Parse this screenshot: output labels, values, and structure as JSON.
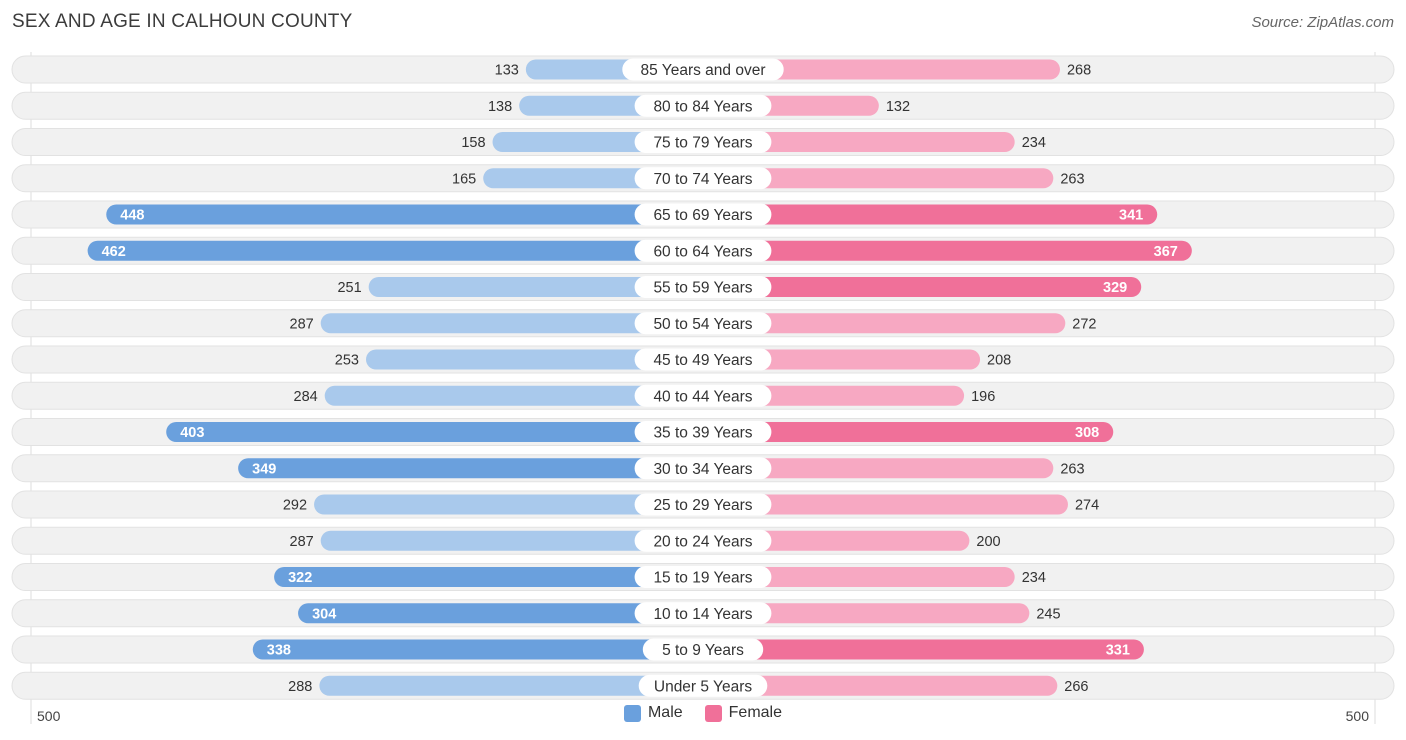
{
  "title": "SEX AND AGE IN CALHOUN COUNTY",
  "source": "Source: ZipAtlas.com",
  "chart_data": {
    "type": "bar",
    "orientation": "horizontal-diverging",
    "categories": [
      "85 Years and over",
      "80 to 84 Years",
      "75 to 79 Years",
      "70 to 74 Years",
      "65 to 69 Years",
      "60 to 64 Years",
      "55 to 59 Years",
      "50 to 54 Years",
      "45 to 49 Years",
      "40 to 44 Years",
      "35 to 39 Years",
      "30 to 34 Years",
      "25 to 29 Years",
      "20 to 24 Years",
      "15 to 19 Years",
      "10 to 14 Years",
      "5 to 9 Years",
      "Under 5 Years"
    ],
    "series": [
      {
        "name": "Male",
        "values": [
          133,
          138,
          158,
          165,
          448,
          462,
          251,
          287,
          253,
          284,
          403,
          349,
          292,
          287,
          322,
          304,
          338,
          288
        ]
      },
      {
        "name": "Female",
        "values": [
          268,
          132,
          234,
          263,
          341,
          367,
          329,
          272,
          208,
          196,
          308,
          263,
          274,
          200,
          234,
          245,
          331,
          266
        ]
      }
    ],
    "axis": {
      "left_label": "500",
      "right_label": "500",
      "max": 500
    },
    "legend": {
      "position": "bottom-center"
    },
    "colors": {
      "male_light": "#a9c9ec",
      "male_dark": "#6aa0dd",
      "female_light": "#f7a8c2",
      "female_dark": "#f07099",
      "row_bg": "#f1f1f1",
      "row_border": "#e2e2e2"
    }
  }
}
